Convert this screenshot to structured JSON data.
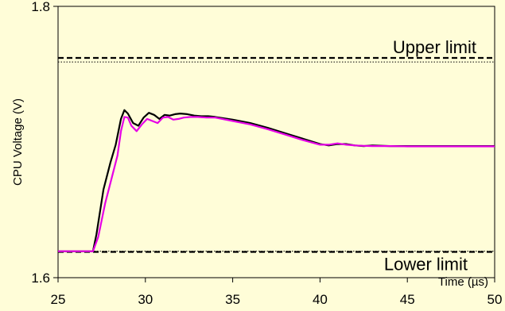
{
  "chart_data": {
    "type": "line",
    "title": "",
    "xlabel": "Time (µs)",
    "ylabel": "CPU Voltage (V)",
    "xlim": [
      25,
      50
    ],
    "ylim": [
      1.6,
      1.8
    ],
    "x_ticks": [
      "25",
      "30",
      "35",
      "40",
      "45",
      "50"
    ],
    "x_tick_values": [
      25,
      30,
      35,
      40,
      45,
      50
    ],
    "y_ticks": [
      "1.6",
      "1.8"
    ],
    "y_tick_values": [
      1.6,
      1.8
    ],
    "grid": false,
    "colors": {
      "background": "#fffdd8",
      "plot_area": "#fffdd8",
      "series_black": "#000000",
      "series_magenta": "#e600e6"
    },
    "reference_lines": [
      {
        "label": "Upper limit",
        "y": 1.762,
        "style": "dashed"
      },
      {
        "label": "",
        "y": 1.759,
        "style": "dotted"
      },
      {
        "label": "Lower limit",
        "y": 1.619,
        "style": "dashed"
      },
      {
        "label": "",
        "y": 1.6195,
        "style": "dotted"
      }
    ],
    "series": [
      {
        "color": "#000000",
        "x": [
          25,
          27.0,
          27.2,
          27.6,
          28.0,
          28.3,
          28.6,
          28.8,
          29.0,
          29.3,
          29.6,
          29.9,
          30.2,
          30.5,
          30.8,
          31.1,
          31.4,
          31.7,
          32.0,
          32.4,
          32.8,
          33.2,
          33.6,
          34.0,
          35.0,
          36.0,
          37.0,
          38.0,
          39.0,
          40.0,
          40.5,
          41.0,
          41.5,
          42.0,
          42.5,
          43.0,
          44.0,
          45.0,
          46.0,
          47.0,
          48.0,
          49.0,
          50.0
        ],
        "y": [
          1.6195,
          1.6195,
          1.632,
          1.665,
          1.685,
          1.698,
          1.717,
          1.7235,
          1.721,
          1.714,
          1.712,
          1.718,
          1.7215,
          1.72,
          1.717,
          1.72,
          1.7195,
          1.7205,
          1.721,
          1.7205,
          1.7195,
          1.719,
          1.719,
          1.7185,
          1.7165,
          1.714,
          1.7105,
          1.7065,
          1.7025,
          1.6985,
          1.6975,
          1.6985,
          1.6985,
          1.6975,
          1.697,
          1.6975,
          1.697,
          1.697,
          1.697,
          1.697,
          1.697,
          1.697,
          1.697
        ]
      },
      {
        "color": "#e600e6",
        "x": [
          25,
          27.0,
          27.3,
          27.7,
          28.1,
          28.4,
          28.6,
          28.8,
          29.0,
          29.2,
          29.5,
          29.8,
          30.1,
          30.4,
          30.7,
          31.0,
          31.3,
          31.6,
          31.9,
          32.2,
          32.6,
          33.0,
          33.5,
          34.0,
          35.0,
          36.0,
          37.0,
          38.0,
          39.0,
          40.0,
          40.5,
          41.0,
          41.5,
          42.0,
          42.5,
          43.0,
          44.0,
          45.0,
          46.0,
          47.0,
          48.0,
          49.0,
          50.0
        ],
        "y": [
          1.6195,
          1.6195,
          1.63,
          1.655,
          1.675,
          1.69,
          1.708,
          1.7185,
          1.718,
          1.712,
          1.708,
          1.713,
          1.717,
          1.7155,
          1.714,
          1.718,
          1.7185,
          1.7165,
          1.717,
          1.718,
          1.7185,
          1.7185,
          1.718,
          1.718,
          1.7155,
          1.713,
          1.7095,
          1.7055,
          1.7015,
          1.698,
          1.698,
          1.699,
          1.698,
          1.6975,
          1.6972,
          1.697,
          1.697,
          1.6968,
          1.6968,
          1.6968,
          1.6968,
          1.6968,
          1.6968
        ]
      }
    ]
  }
}
